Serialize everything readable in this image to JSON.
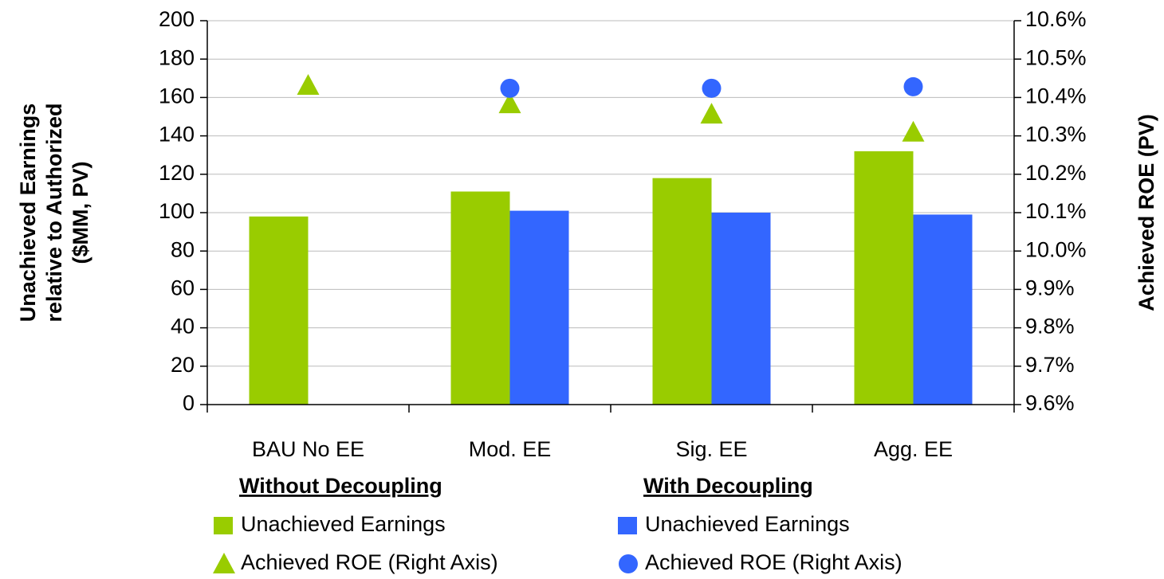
{
  "chart_data": {
    "type": "bar",
    "categories": [
      "BAU No EE",
      "Mod. EE",
      "Sig. EE",
      "Agg. EE"
    ],
    "ylabel": [
      "Unachieved Earnings",
      "relative to Authorized",
      "($MM, PV)"
    ],
    "y2label": "Achieved ROE (PV)",
    "ylim": [
      0,
      200
    ],
    "yticks": [
      0,
      20,
      40,
      60,
      80,
      100,
      120,
      140,
      160,
      180,
      200
    ],
    "y2lim": [
      9.6,
      10.6
    ],
    "y2ticks": [
      {
        "value": 9.6,
        "label": "9.6%"
      },
      {
        "value": 9.7,
        "label": "9.7%"
      },
      {
        "value": 9.8,
        "label": "9.8%"
      },
      {
        "value": 9.9,
        "label": "9.9%"
      },
      {
        "value": 10.0,
        "label": "10.0%"
      },
      {
        "value": 10.1,
        "label": "10.1%"
      },
      {
        "value": 10.2,
        "label": "10.2%"
      },
      {
        "value": 10.3,
        "label": "10.3%"
      },
      {
        "value": 10.4,
        "label": "10.4%"
      },
      {
        "value": 10.5,
        "label": "10.5%"
      },
      {
        "value": 10.6,
        "label": "10.6%"
      }
    ],
    "grid": true,
    "groups": [
      {
        "title": "Without Decoupling",
        "series": [
          {
            "name": "Unachieved Earnings",
            "type": "bar",
            "color": "#99cc00",
            "values": [
              98,
              111,
              118,
              132
            ]
          },
          {
            "name": "Achieved ROE (Right Axis)",
            "type": "scatter",
            "marker": "triangle",
            "axis": "y2",
            "color": "#99cc00",
            "values": [
              10.432,
              10.384,
              10.357,
              10.31
            ]
          }
        ]
      },
      {
        "title": "With Decoupling",
        "series": [
          {
            "name": "Unachieved Earnings",
            "type": "bar",
            "color": "#3366ff",
            "values": [
              null,
              101,
              100,
              99
            ]
          },
          {
            "name": "Achieved ROE (Right Axis)",
            "type": "scatter",
            "marker": "circle",
            "axis": "y2",
            "color": "#3366ff",
            "values": [
              null,
              10.424,
              10.424,
              10.428
            ]
          }
        ]
      }
    ]
  }
}
